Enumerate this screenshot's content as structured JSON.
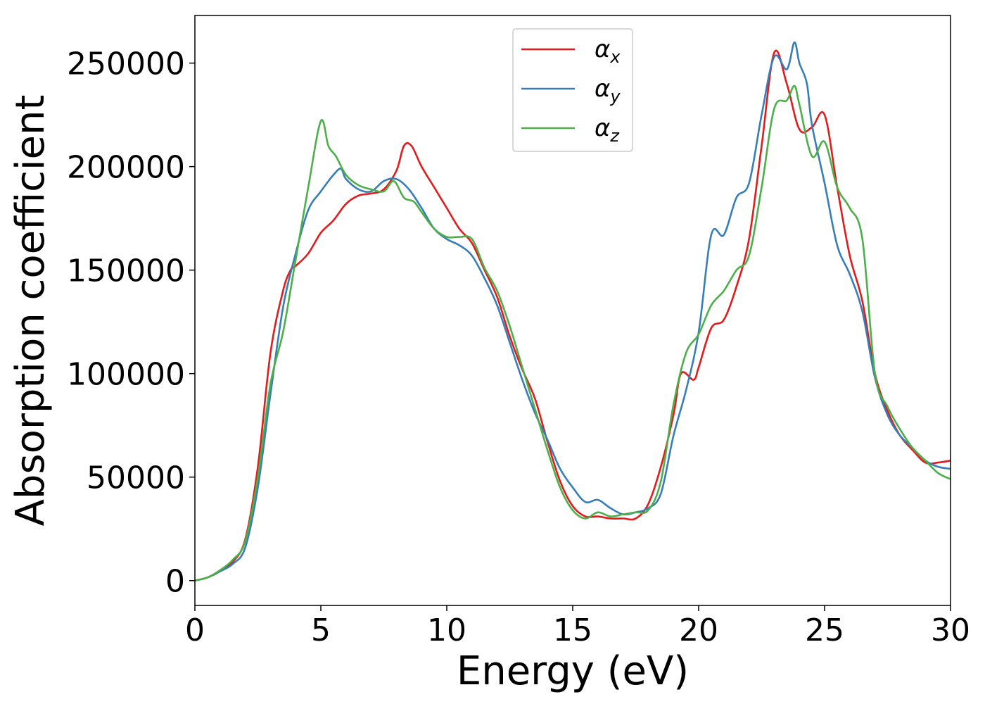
{
  "chart_data": {
    "type": "line",
    "xlabel": "Energy (eV)",
    "ylabel": "Absorption coefficient",
    "xlim": [
      0,
      30
    ],
    "ylim": [
      -12000,
      273000
    ],
    "xticks": [
      0,
      5,
      10,
      15,
      20,
      25,
      30
    ],
    "yticks": [
      0,
      50000,
      100000,
      150000,
      200000,
      250000
    ],
    "xtick_labels": [
      "0",
      "5",
      "10",
      "15",
      "20",
      "25",
      "30"
    ],
    "ytick_labels": [
      "0",
      "50000",
      "100000",
      "150000",
      "200000",
      "250000"
    ],
    "grid": false,
    "legend_position": "top-center",
    "series": [
      {
        "name": "α_x",
        "label_main": "α",
        "label_sub": "x",
        "color": "#e41a1c",
        "points": [
          [
            0,
            0
          ],
          [
            0.5,
            1500
          ],
          [
            1,
            4500
          ],
          [
            1.5,
            9000
          ],
          [
            2,
            20000
          ],
          [
            2.5,
            55000
          ],
          [
            3,
            110000
          ],
          [
            3.5,
            140000
          ],
          [
            3.8,
            150000
          ],
          [
            4,
            152000
          ],
          [
            4.5,
            158000
          ],
          [
            5,
            168000
          ],
          [
            5.5,
            174000
          ],
          [
            6,
            182000
          ],
          [
            6.5,
            186000
          ],
          [
            7,
            187000
          ],
          [
            7.5,
            189000
          ],
          [
            8,
            198000
          ],
          [
            8.3,
            210000
          ],
          [
            8.6,
            210000
          ],
          [
            9,
            200000
          ],
          [
            9.5,
            190000
          ],
          [
            10,
            180000
          ],
          [
            10.5,
            170000
          ],
          [
            11,
            163000
          ],
          [
            11.5,
            150000
          ],
          [
            12,
            137000
          ],
          [
            12.5,
            118000
          ],
          [
            13,
            102000
          ],
          [
            13.5,
            88000
          ],
          [
            14,
            67000
          ],
          [
            14.5,
            48000
          ],
          [
            15,
            36000
          ],
          [
            15.5,
            31000
          ],
          [
            16,
            31000
          ],
          [
            16.5,
            30000
          ],
          [
            17,
            30000
          ],
          [
            17.5,
            30000
          ],
          [
            18,
            37000
          ],
          [
            18.5,
            55000
          ],
          [
            19,
            80000
          ],
          [
            19.3,
            100000
          ],
          [
            19.8,
            97000
          ],
          [
            20,
            103000
          ],
          [
            20.5,
            122000
          ],
          [
            21,
            126000
          ],
          [
            21.5,
            142000
          ],
          [
            22,
            165000
          ],
          [
            22.5,
            210000
          ],
          [
            23,
            255000
          ],
          [
            23.5,
            240000
          ],
          [
            24,
            218000
          ],
          [
            24.5,
            219000
          ],
          [
            25,
            225000
          ],
          [
            25.5,
            190000
          ],
          [
            26,
            157000
          ],
          [
            26.5,
            135000
          ],
          [
            27,
            100000
          ],
          [
            27.5,
            82000
          ],
          [
            28,
            70000
          ],
          [
            28.5,
            63000
          ],
          [
            29,
            57000
          ],
          [
            29.5,
            57000
          ],
          [
            30,
            58000
          ]
        ]
      },
      {
        "name": "α_y",
        "label_main": "α",
        "label_sub": "y",
        "color": "#377eb8",
        "points": [
          [
            0,
            0
          ],
          [
            0.5,
            1500
          ],
          [
            1,
            4500
          ],
          [
            1.5,
            8000
          ],
          [
            2,
            16000
          ],
          [
            2.5,
            45000
          ],
          [
            3,
            90000
          ],
          [
            3.5,
            132000
          ],
          [
            4,
            158000
          ],
          [
            4.5,
            179000
          ],
          [
            5,
            188000
          ],
          [
            5.5,
            196000
          ],
          [
            5.8,
            199000
          ],
          [
            6,
            194000
          ],
          [
            6.5,
            189000
          ],
          [
            7,
            188000
          ],
          [
            7.5,
            193000
          ],
          [
            8,
            194000
          ],
          [
            8.5,
            189000
          ],
          [
            9,
            180000
          ],
          [
            9.5,
            170000
          ],
          [
            10,
            165000
          ],
          [
            10.5,
            162000
          ],
          [
            11,
            157000
          ],
          [
            11.5,
            146000
          ],
          [
            12,
            133000
          ],
          [
            12.5,
            115000
          ],
          [
            13,
            97000
          ],
          [
            13.5,
            81000
          ],
          [
            14,
            68000
          ],
          [
            14.5,
            54000
          ],
          [
            15,
            45000
          ],
          [
            15.5,
            38000
          ],
          [
            16,
            39000
          ],
          [
            16.5,
            35000
          ],
          [
            17,
            32000
          ],
          [
            17.5,
            33000
          ],
          [
            18,
            35000
          ],
          [
            18.5,
            42000
          ],
          [
            19,
            70000
          ],
          [
            19.5,
            92000
          ],
          [
            20,
            120000
          ],
          [
            20.5,
            167000
          ],
          [
            21,
            167000
          ],
          [
            21.5,
            185000
          ],
          [
            22,
            192000
          ],
          [
            22.5,
            225000
          ],
          [
            23,
            253000
          ],
          [
            23.5,
            247000
          ],
          [
            23.8,
            260000
          ],
          [
            24,
            250000
          ],
          [
            24.3,
            240000
          ],
          [
            24.5,
            220000
          ],
          [
            25,
            192000
          ],
          [
            25.5,
            162000
          ],
          [
            26,
            148000
          ],
          [
            26.5,
            130000
          ],
          [
            27,
            98000
          ],
          [
            27.5,
            80000
          ],
          [
            28,
            70000
          ],
          [
            28.5,
            64000
          ],
          [
            29,
            58000
          ],
          [
            29.5,
            55000
          ],
          [
            30,
            54000
          ]
        ]
      },
      {
        "name": "α_z",
        "label_main": "α",
        "label_sub": "z",
        "color": "#4daf4a",
        "points": [
          [
            0,
            0
          ],
          [
            0.5,
            1500
          ],
          [
            1,
            5000
          ],
          [
            1.5,
            10000
          ],
          [
            2,
            19000
          ],
          [
            2.5,
            50000
          ],
          [
            3,
            95000
          ],
          [
            3.5,
            120000
          ],
          [
            4,
            155000
          ],
          [
            4.5,
            190000
          ],
          [
            5,
            222000
          ],
          [
            5.3,
            210000
          ],
          [
            5.6,
            205000
          ],
          [
            6,
            196000
          ],
          [
            6.5,
            191000
          ],
          [
            7,
            189000
          ],
          [
            7.5,
            188000
          ],
          [
            7.9,
            193000
          ],
          [
            8.3,
            185000
          ],
          [
            8.7,
            183000
          ],
          [
            9,
            178000
          ],
          [
            9.5,
            170000
          ],
          [
            10,
            166000
          ],
          [
            10.5,
            166000
          ],
          [
            11,
            165000
          ],
          [
            11.5,
            151000
          ],
          [
            12,
            140000
          ],
          [
            12.5,
            123000
          ],
          [
            13,
            103000
          ],
          [
            13.5,
            83000
          ],
          [
            14,
            63000
          ],
          [
            14.5,
            45000
          ],
          [
            15,
            34000
          ],
          [
            15.5,
            30000
          ],
          [
            16,
            33000
          ],
          [
            16.5,
            31000
          ],
          [
            17,
            32000
          ],
          [
            17.5,
            33000
          ],
          [
            18,
            34000
          ],
          [
            18.5,
            48000
          ],
          [
            19,
            85000
          ],
          [
            19.5,
            110000
          ],
          [
            20,
            119000
          ],
          [
            20.5,
            133000
          ],
          [
            21,
            140000
          ],
          [
            21.5,
            150000
          ],
          [
            22,
            157000
          ],
          [
            22.5,
            190000
          ],
          [
            23,
            228000
          ],
          [
            23.5,
            232000
          ],
          [
            23.8,
            239000
          ],
          [
            24,
            230000
          ],
          [
            24.5,
            205000
          ],
          [
            25,
            212000
          ],
          [
            25.5,
            190000
          ],
          [
            26,
            180000
          ],
          [
            26.5,
            165000
          ],
          [
            27,
            100000
          ],
          [
            27.5,
            84000
          ],
          [
            28,
            73000
          ],
          [
            28.5,
            64000
          ],
          [
            29,
            58000
          ],
          [
            29.5,
            52000
          ],
          [
            30,
            49000
          ]
        ]
      }
    ]
  }
}
